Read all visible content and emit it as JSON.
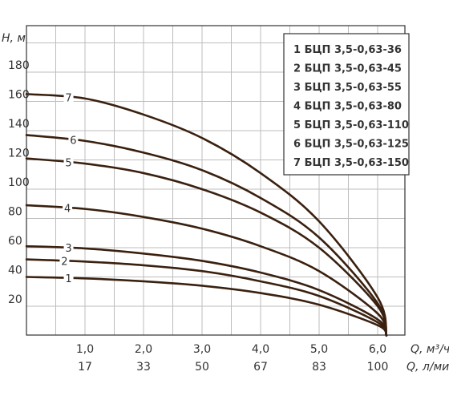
{
  "chart_data": {
    "type": "line",
    "ylabel": "H, м",
    "xlabel_primary": "Q, м³/ч",
    "xlabel_secondary": "Q, л/мин",
    "xlim": [
      0,
      6.4
    ],
    "ylim": [
      0,
      200
    ],
    "y_ticks": [
      "20",
      "40",
      "60",
      "80",
      "100",
      "120",
      "140",
      "160",
      "180"
    ],
    "y_tick_values": [
      20,
      40,
      60,
      80,
      100,
      120,
      140,
      160,
      180
    ],
    "x_ticks_primary": [
      "1,0",
      "2,0",
      "3,0",
      "4,0",
      "5,0",
      "6,0"
    ],
    "x_ticks_secondary": [
      "17",
      "33",
      "50",
      "67",
      "83",
      "100"
    ],
    "x_tick_values": [
      1,
      2,
      3,
      4,
      5,
      6
    ],
    "grid": true,
    "legend_placement": "top-right",
    "legend": [
      "1 БЦП 3,5-0,63-36",
      "2 БЦП 3,5-0,63-45",
      "3 БЦП 3,5-0,63-55",
      "4 БЦП 3,5-0,63-80",
      "5 БЦП 3,5-0,63-110",
      "6 БЦП 3,5-0,63-125",
      "7 БЦП 3,5-0,63-150"
    ],
    "series": [
      {
        "name": "1",
        "x": [
          0,
          1,
          2,
          3,
          4,
          5,
          6,
          6.15
        ],
        "y": [
          40,
          39,
          37,
          34,
          29,
          21,
          7,
          0
        ]
      },
      {
        "name": "2",
        "x": [
          0,
          1,
          2,
          3,
          4,
          5,
          6,
          6.15
        ],
        "y": [
          52,
          50.5,
          48,
          44,
          37,
          27,
          9,
          0
        ]
      },
      {
        "name": "3",
        "x": [
          0,
          1,
          2,
          3,
          4,
          5,
          6,
          6.15
        ],
        "y": [
          61,
          59.5,
          56,
          51,
          43,
          31,
          11,
          0
        ]
      },
      {
        "name": "4",
        "x": [
          0,
          1,
          2,
          3,
          4,
          5,
          6,
          6.15
        ],
        "y": [
          89,
          86.5,
          81,
          73,
          61,
          44,
          15,
          0
        ]
      },
      {
        "name": "5",
        "x": [
          0,
          1,
          2,
          3,
          4,
          5,
          6,
          6.15
        ],
        "y": [
          121,
          117.5,
          111,
          100,
          84,
          60,
          20,
          0
        ]
      },
      {
        "name": "6",
        "x": [
          0,
          1,
          2,
          3,
          4,
          5,
          6,
          6.15
        ],
        "y": [
          137,
          133,
          125,
          113,
          94,
          67,
          22,
          0
        ]
      },
      {
        "name": "7",
        "x": [
          0,
          1,
          2,
          3,
          4,
          5,
          6,
          6.15
        ],
        "y": [
          165,
          162,
          151,
          135,
          111,
          78,
          26,
          0
        ]
      }
    ],
    "colors": {
      "curve": "#3a200f",
      "grid": "#bdbdbd",
      "frame": "#333333"
    }
  }
}
